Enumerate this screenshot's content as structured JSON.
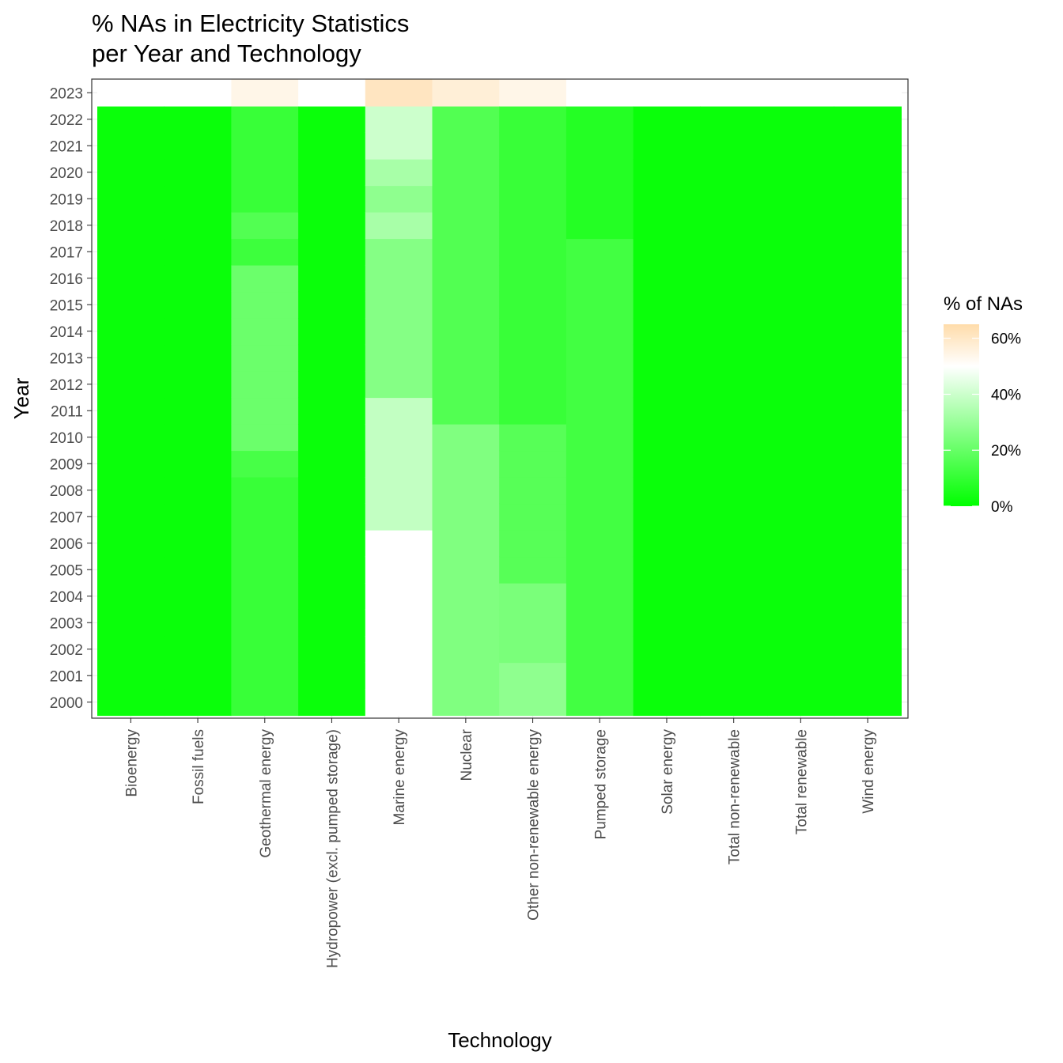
{
  "chart_data": {
    "type": "heatmap",
    "title": "% NAs in Electricity Statistics",
    "subtitle": "per Year and Technology",
    "xlabel": "Technology",
    "ylabel": "Year",
    "legend_title": "% of NAs",
    "legend_placement": "right",
    "grid": true,
    "color_scale": {
      "stops": [
        {
          "value": 0,
          "color": "#00ff00"
        },
        {
          "value": 50,
          "color": "#ffffff"
        },
        {
          "value": 65,
          "color": "#ffdcaa"
        }
      ],
      "range": [
        0,
        65
      ],
      "ticks": [
        0,
        20,
        40,
        60
      ],
      "tick_labels": [
        "0%",
        "20%",
        "40%",
        "60%"
      ]
    },
    "technologies": [
      "Bioenergy",
      "Fossil fuels",
      "Geothermal energy",
      "Hydropower (excl. pumped storage)",
      "Marine energy",
      "Nuclear",
      "Other non-renewable energy",
      "Pumped storage",
      "Solar energy",
      "Total non-renewable",
      "Total renewable",
      "Wind energy"
    ],
    "years": [
      "2000",
      "2001",
      "2002",
      "2003",
      "2004",
      "2005",
      "2006",
      "2007",
      "2008",
      "2009",
      "2010",
      "2011",
      "2012",
      "2013",
      "2014",
      "2015",
      "2016",
      "2017",
      "2018",
      "2019",
      "2020",
      "2021",
      "2022",
      "2023"
    ],
    "series": [
      {
        "name": "Bioenergy",
        "values": [
          2,
          2,
          2,
          2,
          2,
          2,
          2,
          2,
          2,
          2,
          2,
          2,
          2,
          2,
          2,
          2,
          2,
          2,
          2,
          2,
          2,
          2,
          2,
          50
        ]
      },
      {
        "name": "Fossil fuels",
        "values": [
          2,
          2,
          2,
          2,
          2,
          2,
          2,
          2,
          2,
          2,
          2,
          2,
          2,
          2,
          2,
          2,
          2,
          2,
          2,
          2,
          2,
          2,
          2,
          50
        ]
      },
      {
        "name": "Geothermal energy",
        "values": [
          11,
          11,
          11,
          11,
          11,
          11,
          11,
          11,
          11,
          14,
          21,
          21,
          21,
          21,
          21,
          21,
          21,
          12,
          16,
          11,
          11,
          11,
          11,
          54
        ]
      },
      {
        "name": "Hydropower (excl. pumped storage)",
        "values": [
          2,
          2,
          2,
          2,
          2,
          2,
          2,
          2,
          2,
          2,
          2,
          2,
          2,
          2,
          2,
          2,
          2,
          2,
          2,
          2,
          2,
          2,
          2,
          50
        ]
      },
      {
        "name": "Marine energy",
        "values": [
          50,
          50,
          50,
          50,
          50,
          50,
          50,
          38,
          38,
          38,
          38,
          38,
          26,
          26,
          26,
          26,
          26,
          26,
          33,
          28,
          33,
          40,
          40,
          61
        ]
      },
      {
        "name": "Nuclear",
        "values": [
          25,
          25,
          25,
          25,
          25,
          25,
          25,
          25,
          25,
          25,
          25,
          16,
          16,
          16,
          16,
          16,
          16,
          16,
          16,
          16,
          16,
          16,
          16,
          57
        ]
      },
      {
        "name": "Other non-renewable energy",
        "values": [
          28,
          28,
          24,
          24,
          24,
          17,
          17,
          17,
          17,
          17,
          17,
          11,
          11,
          11,
          11,
          11,
          11,
          11,
          11,
          11,
          11,
          11,
          11,
          54
        ]
      },
      {
        "name": "Pumped storage",
        "values": [
          13,
          13,
          13,
          13,
          13,
          13,
          13,
          13,
          13,
          13,
          13,
          13,
          13,
          13,
          13,
          13,
          13,
          13,
          7,
          7,
          7,
          7,
          7,
          50
        ]
      },
      {
        "name": "Solar energy",
        "values": [
          2,
          2,
          2,
          2,
          2,
          2,
          2,
          2,
          2,
          2,
          2,
          2,
          2,
          2,
          2,
          2,
          2,
          2,
          2,
          2,
          2,
          2,
          2,
          50
        ]
      },
      {
        "name": "Total non-renewable",
        "values": [
          2,
          2,
          2,
          2,
          2,
          2,
          2,
          2,
          2,
          2,
          2,
          2,
          2,
          2,
          2,
          2,
          2,
          2,
          2,
          2,
          2,
          2,
          2,
          50
        ]
      },
      {
        "name": "Total renewable",
        "values": [
          2,
          2,
          2,
          2,
          2,
          2,
          2,
          2,
          2,
          2,
          2,
          2,
          2,
          2,
          2,
          2,
          2,
          2,
          2,
          2,
          2,
          2,
          2,
          50
        ]
      },
      {
        "name": "Wind energy",
        "values": [
          2,
          2,
          2,
          2,
          2,
          2,
          2,
          2,
          2,
          2,
          2,
          2,
          2,
          2,
          2,
          2,
          2,
          2,
          2,
          2,
          2,
          2,
          2,
          50
        ]
      }
    ]
  }
}
